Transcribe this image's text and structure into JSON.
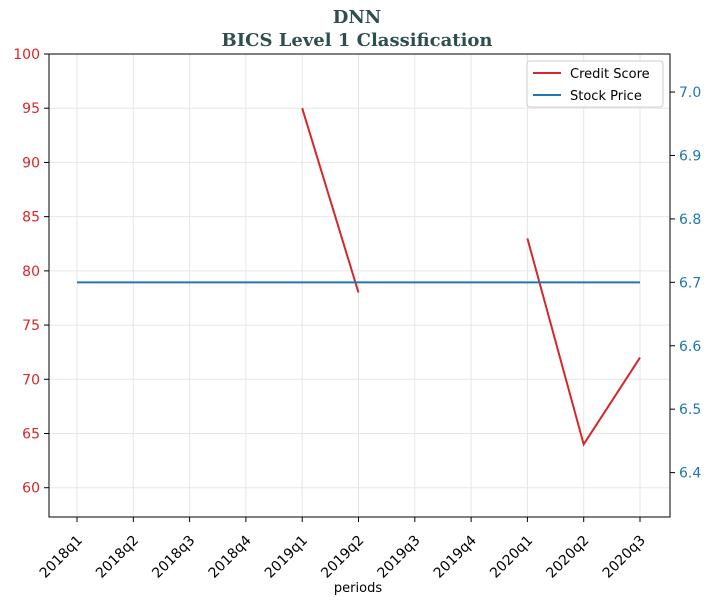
{
  "chart_data": {
    "type": "line",
    "title": "DNN",
    "subtitle": "BICS Level 1 Classification",
    "xlabel": "periods",
    "ylabel": "",
    "ylabel_right": "",
    "categories": [
      "2018q1",
      "2018q2",
      "2018q3",
      "2018q4",
      "2019q1",
      "2019q2",
      "2019q3",
      "2019q4",
      "2020q1",
      "2020q2",
      "2020q3"
    ],
    "ylim": [
      57.3,
      100
    ],
    "ylim_right": [
      6.33,
      7.06
    ],
    "yticks": [
      60,
      65,
      70,
      75,
      80,
      85,
      90,
      95,
      100
    ],
    "yticks_right": [
      "6.4",
      "6.5",
      "6.6",
      "6.7",
      "6.8",
      "6.9",
      "7.0"
    ],
    "grid": true,
    "legend_position": "top-right",
    "series": [
      {
        "name": "Credit Score",
        "axis": "left",
        "color": "#d62728",
        "values": [
          null,
          null,
          null,
          null,
          95,
          78,
          null,
          null,
          83,
          64,
          72
        ]
      },
      {
        "name": "Stock Price",
        "axis": "right",
        "color": "#1f77b4",
        "values": [
          6.7,
          6.7,
          6.7,
          6.7,
          6.7,
          6.7,
          6.7,
          6.7,
          6.7,
          6.7,
          6.7
        ]
      }
    ]
  }
}
